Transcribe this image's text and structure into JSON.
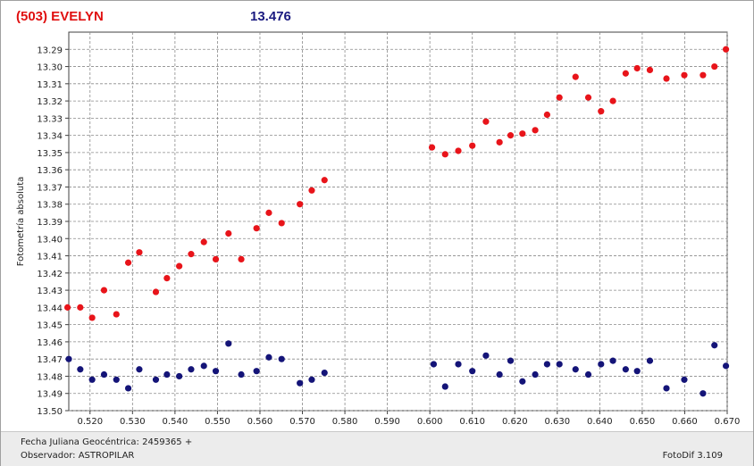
{
  "header": {
    "object": "(503) EVELYN",
    "magnitude": "13.476"
  },
  "footer": {
    "jd_label": "Fecha Juliana Geocéntrica: 2459365 +",
    "observer_label": "Observador: ASTROPILAR",
    "software": "FotoDif 3.109"
  },
  "colors": {
    "series_object": "#e8141a",
    "series_comp": "#141478",
    "grid": "#8a8a8a"
  },
  "chart_data": {
    "type": "scatter",
    "title": "",
    "xlabel": "",
    "ylabel": "Fotometría absoluta",
    "xlim": [
      0.515,
      0.67
    ],
    "ylim": [
      13.5,
      13.28
    ],
    "y_inverted": true,
    "grid": true,
    "x_ticks": [
      "0.520",
      "0.530",
      "0.540",
      "0.550",
      "0.560",
      "0.570",
      "0.580",
      "0.590",
      "0.600",
      "0.610",
      "0.620",
      "0.630",
      "0.640",
      "0.650",
      "0.660",
      "0.670"
    ],
    "y_ticks": [
      "13.29",
      "13.30",
      "13.31",
      "13.32",
      "13.33",
      "13.34",
      "13.35",
      "13.36",
      "13.37",
      "13.38",
      "13.39",
      "13.40",
      "13.41",
      "13.42",
      "13.43",
      "13.44",
      "13.45",
      "13.46",
      "13.47",
      "13.48",
      "13.49",
      "13.50"
    ],
    "series": [
      {
        "color": "#e8141a",
        "points": [
          [
            0.5147,
            13.44
          ],
          [
            0.5177,
            13.44
          ],
          [
            0.5205,
            13.446
          ],
          [
            0.5233,
            13.43
          ],
          [
            0.5262,
            13.444
          ],
          [
            0.529,
            13.414
          ],
          [
            0.5316,
            13.408
          ],
          [
            0.5355,
            13.431
          ],
          [
            0.5381,
            13.423
          ],
          [
            0.541,
            13.416
          ],
          [
            0.5438,
            13.409
          ],
          [
            0.5468,
            13.402
          ],
          [
            0.5496,
            13.412
          ],
          [
            0.5526,
            13.397
          ],
          [
            0.5556,
            13.412
          ],
          [
            0.5592,
            13.394
          ],
          [
            0.5621,
            13.385
          ],
          [
            0.5651,
            13.391
          ],
          [
            0.5694,
            13.38
          ],
          [
            0.5722,
            13.372
          ],
          [
            0.5752,
            13.366
          ],
          [
            0.6005,
            13.347
          ],
          [
            0.6036,
            13.351
          ],
          [
            0.6067,
            13.349
          ],
          [
            0.61,
            13.346
          ],
          [
            0.6132,
            13.332
          ],
          [
            0.6164,
            13.344
          ],
          [
            0.619,
            13.34
          ],
          [
            0.6218,
            13.339
          ],
          [
            0.6248,
            13.337
          ],
          [
            0.6276,
            13.328
          ],
          [
            0.6305,
            13.318
          ],
          [
            0.6343,
            13.306
          ],
          [
            0.6373,
            13.318
          ],
          [
            0.6403,
            13.326
          ],
          [
            0.6431,
            13.32
          ],
          [
            0.6461,
            13.304
          ],
          [
            0.6488,
            13.301
          ],
          [
            0.6518,
            13.302
          ],
          [
            0.6557,
            13.307
          ],
          [
            0.6599,
            13.305
          ],
          [
            0.6643,
            13.305
          ],
          [
            0.667,
            13.3
          ],
          [
            0.6697,
            13.29
          ]
        ]
      },
      {
        "color": "#141478",
        "points": [
          [
            0.515,
            13.47
          ],
          [
            0.5177,
            13.476
          ],
          [
            0.5205,
            13.482
          ],
          [
            0.5233,
            13.479
          ],
          [
            0.5262,
            13.482
          ],
          [
            0.529,
            13.487
          ],
          [
            0.5316,
            13.476
          ],
          [
            0.5355,
            13.482
          ],
          [
            0.5381,
            13.479
          ],
          [
            0.541,
            13.48
          ],
          [
            0.5438,
            13.476
          ],
          [
            0.5468,
            13.474
          ],
          [
            0.5496,
            13.477
          ],
          [
            0.5526,
            13.461
          ],
          [
            0.5556,
            13.479
          ],
          [
            0.5592,
            13.477
          ],
          [
            0.5621,
            13.469
          ],
          [
            0.5651,
            13.47
          ],
          [
            0.5694,
            13.484
          ],
          [
            0.5722,
            13.482
          ],
          [
            0.5752,
            13.478
          ],
          [
            0.6009,
            13.473
          ],
          [
            0.6036,
            13.486
          ],
          [
            0.6067,
            13.473
          ],
          [
            0.61,
            13.477
          ],
          [
            0.6132,
            13.468
          ],
          [
            0.6164,
            13.479
          ],
          [
            0.619,
            13.471
          ],
          [
            0.6218,
            13.483
          ],
          [
            0.6248,
            13.479
          ],
          [
            0.6276,
            13.473
          ],
          [
            0.6305,
            13.473
          ],
          [
            0.6343,
            13.476
          ],
          [
            0.6373,
            13.479
          ],
          [
            0.6403,
            13.473
          ],
          [
            0.6431,
            13.471
          ],
          [
            0.6461,
            13.476
          ],
          [
            0.6488,
            13.477
          ],
          [
            0.6518,
            13.471
          ],
          [
            0.6557,
            13.487
          ],
          [
            0.6599,
            13.482
          ],
          [
            0.6643,
            13.49
          ],
          [
            0.667,
            13.462
          ],
          [
            0.6697,
            13.474
          ]
        ]
      }
    ]
  }
}
